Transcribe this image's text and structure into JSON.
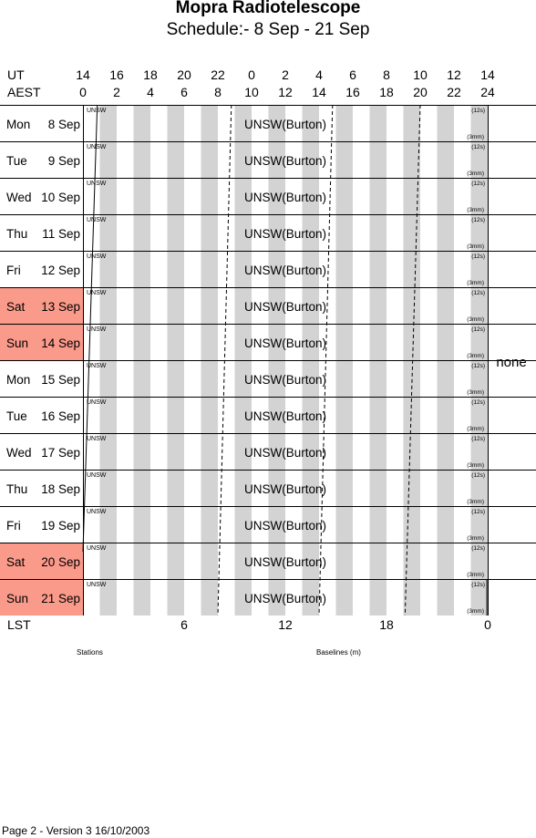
{
  "header": {
    "title": "Mopra Radiotelescope",
    "subtitle": "Schedule:- 8  Sep - 21 Sep"
  },
  "time_axis": {
    "ut_label": "UT",
    "aest_label": "AEST",
    "ut_ticks": [
      "14",
      "16",
      "18",
      "20",
      "22",
      "0",
      "2",
      "4",
      "6",
      "8",
      "10",
      "12",
      "14"
    ],
    "aest_ticks": [
      "0",
      "2",
      "4",
      "6",
      "8",
      "10",
      "12",
      "14",
      "16",
      "18",
      "20",
      "22",
      "24"
    ]
  },
  "days": [
    {
      "dow": "Mon",
      "date": "8  Sep",
      "weekend": false
    },
    {
      "dow": "Tue",
      "date": "9  Sep",
      "weekend": false
    },
    {
      "dow": "Wed",
      "date": "10 Sep",
      "weekend": false
    },
    {
      "dow": "Thu",
      "date": "11 Sep",
      "weekend": false
    },
    {
      "dow": "Fri",
      "date": "12 Sep",
      "weekend": false
    },
    {
      "dow": "Sat",
      "date": "13 Sep",
      "weekend": true
    },
    {
      "dow": "Sun",
      "date": "14 Sep",
      "weekend": true
    },
    {
      "dow": "Mon",
      "date": "15 Sep",
      "weekend": false
    },
    {
      "dow": "Tue",
      "date": "16 Sep",
      "weekend": false
    },
    {
      "dow": "Wed",
      "date": "17 Sep",
      "weekend": false
    },
    {
      "dow": "Thu",
      "date": "18 Sep",
      "weekend": false
    },
    {
      "dow": "Fri",
      "date": "19 Sep",
      "weekend": false
    },
    {
      "dow": "Sat",
      "date": "20 Sep",
      "weekend": true
    },
    {
      "dow": "Sun",
      "date": "21 Sep",
      "weekend": true
    }
  ],
  "row_content": {
    "project": "UNSW(Burton)",
    "station_label": "UNSW",
    "corner_top": "(12s)",
    "corner_bottom": "(3mm)"
  },
  "baseline_note": "none",
  "lst": {
    "label": "LST",
    "ticks": [
      "6",
      "12",
      "18",
      "0"
    ]
  },
  "captions": {
    "stations": "Stations",
    "baselines": "Baselines (m)"
  },
  "footer": "Page 2 - Version 3  16/10/2003",
  "colors": {
    "weekend": "#fa9a8a",
    "stripe": "#d3d3d3",
    "grid": "#000000"
  }
}
